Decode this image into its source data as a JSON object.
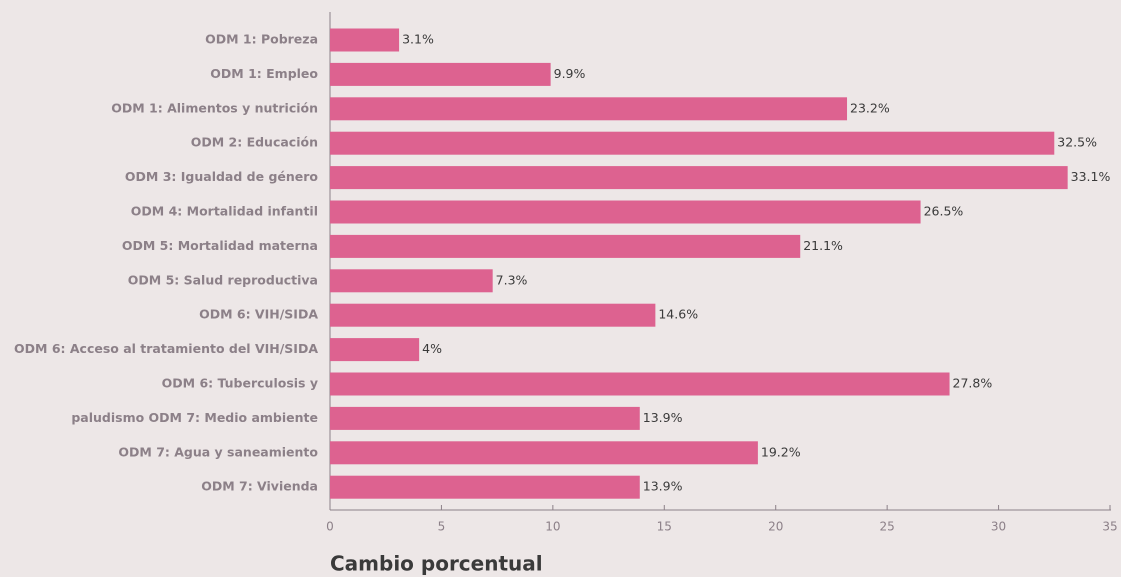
{
  "chart_data": {
    "type": "bar",
    "orientation": "horizontal",
    "x_label": "Cambio porcentual",
    "categories": [
      "ODM 1: Pobreza",
      "ODM 1: Empleo",
      "ODM 1: Alimentos y nutrición",
      "ODM 2: Educación",
      "ODM 3: Igualdad de género",
      "ODM 4: Mortalidad infantil",
      "ODM 5: Mortalidad materna",
      "ODM 5: Salud reproductiva",
      "ODM 6: VIH/SIDA",
      "ODM 6: Acceso al tratamiento del VIH/SIDA",
      "ODM 6: Tuberculosis y",
      "paludismo ODM 7: Medio ambiente",
      "ODM 7: Agua y saneamiento",
      "ODM 7: Vivienda"
    ],
    "values": [
      3.1,
      9.9,
      23.2,
      32.5,
      33.1,
      26.5,
      21.1,
      7.3,
      14.6,
      4,
      27.8,
      13.9,
      19.2,
      13.9
    ],
    "value_labels": [
      "3.1%",
      "9.9%",
      "23.2%",
      "32.5%",
      "33.1%",
      "26.5%",
      "21.1%",
      "7.3%",
      "14.6%",
      "4%",
      "27.8%",
      "13.9%",
      "19.2%",
      "13.9%"
    ],
    "color": "#dd6290",
    "xlim": [
      0,
      35
    ],
    "xticks": [
      0,
      5,
      10,
      15,
      20,
      25,
      30,
      35
    ]
  }
}
